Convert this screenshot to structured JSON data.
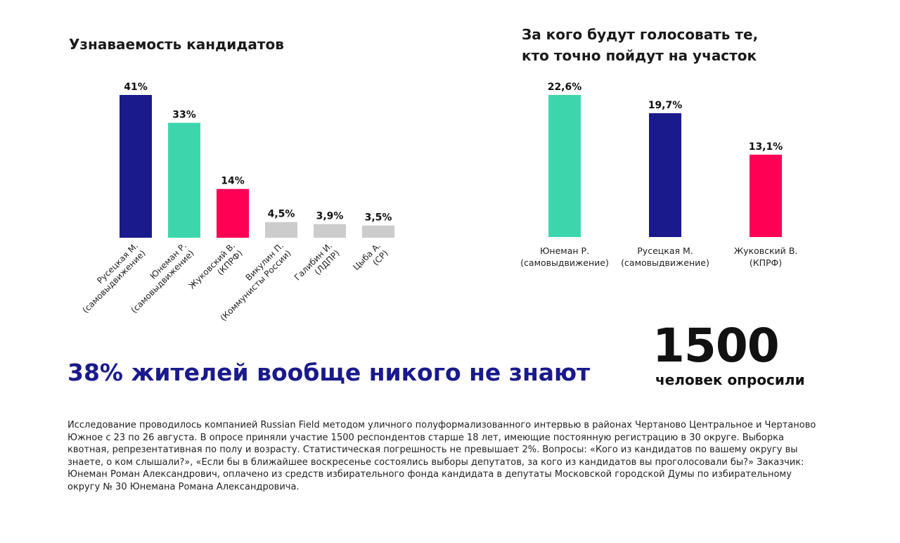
{
  "chart_data": [
    {
      "type": "bar",
      "title": "Узнаваемость кандидатов",
      "categories": [
        [
          "Русецкая М.",
          "(самовыдвижение)"
        ],
        [
          "Юнеман Р.",
          "(самовыдвижение)"
        ],
        [
          "Жуковский В.",
          "(КПРФ)"
        ],
        [
          "Викулин П.",
          "(Коммунисты России)"
        ],
        [
          "Галибин И.",
          "(ЛДПР)"
        ],
        [
          "Цыба А.",
          "(СР)"
        ]
      ],
      "values": [
        41,
        33,
        14,
        4.5,
        3.9,
        3.5
      ],
      "data_labels": [
        "41%",
        "33%",
        "14%",
        "4,5%",
        "3,9%",
        "3,5%"
      ],
      "colors": [
        "#1a1a8c",
        "#3dd6ac",
        "#ff0055",
        "#cccccc",
        "#cccccc",
        "#cccccc"
      ],
      "ylim": [
        0,
        41
      ],
      "unit": "%",
      "grid": false
    },
    {
      "type": "bar",
      "title": "За кого будут голосовать те, кто точно пойдут на участок",
      "title_lines": [
        "За кого будут голосовать те,",
        "кто точно пойдут на участок"
      ],
      "categories": [
        [
          "Юнеман Р.",
          "(самовыдвижение)"
        ],
        [
          "Русецкая М.",
          "(самовыдвижение)"
        ],
        [
          "Жуковский В.",
          "(КПРФ)"
        ]
      ],
      "values": [
        22.6,
        19.7,
        13.1
      ],
      "data_labels": [
        "22,6%",
        "19,7%",
        "13,1%"
      ],
      "colors": [
        "#3dd6ac",
        "#1a1a8c",
        "#ff0055"
      ],
      "ylim": [
        0,
        22.6
      ],
      "unit": "%",
      "grid": false
    }
  ],
  "headline": "38% жителей вообще никого не знают",
  "respondents": {
    "number": "1500",
    "caption": "человек опросили"
  },
  "footnote": "Исследование проводилось компанией Russian Field методом уличного полуформализованного интервью в районах Чертаново Центральное и Чертаново Южное с 23 по 26 августа. В опросе приняли участие 1500 респондентов старше 18 лет, имеющие постоянную регистрацию в 30 округе. Выборка квотная, репрезентативная по полу и возрасту. Статистическая погрешность не превышает 2%. Вопросы: «Кого из кандидатов по вашему округу вы знаете, о ком слышали?», «Если бы в ближайшее воскресенье состоялись выборы депутатов, за кого из кандидатов вы проголосовали бы?» Заказчик: Юнеман Роман Александрович, оплачено из средств избирательного фонда кандидата в депутаты Московской городской Думы по избирательному округу № 30 Юнемана Романа Александровича."
}
